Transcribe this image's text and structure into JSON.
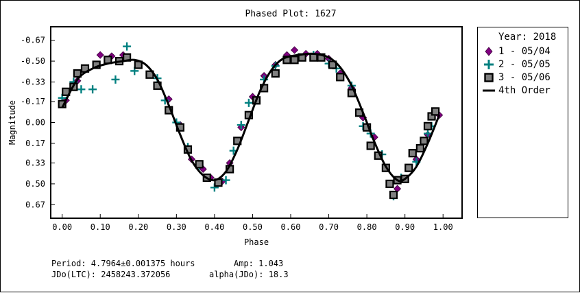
{
  "chart_data": {
    "type": "scatter",
    "title": "Phased Plot: 1627",
    "xlabel": "Phase",
    "ylabel": "Magnitude",
    "xlim": [
      -0.03,
      1.05
    ],
    "ylim": [
      0.78,
      -0.78
    ],
    "x_ticks": [
      "0.00",
      "0.10",
      "0.20",
      "0.30",
      "0.40",
      "0.50",
      "0.60",
      "0.70",
      "0.80",
      "0.90",
      "1.00"
    ],
    "x_tick_values": [
      0.0,
      0.1,
      0.2,
      0.3,
      0.4,
      0.5,
      0.6,
      0.7,
      0.8,
      0.9,
      1.0
    ],
    "y_ticks": [
      "-0.67",
      "-0.50",
      "-0.33",
      "-0.17",
      "0.00",
      "0.17",
      "0.33",
      "0.50",
      "0.67"
    ],
    "y_tick_values": [
      -0.67,
      -0.5,
      -0.33,
      -0.17,
      0.0,
      0.17,
      0.33,
      0.5,
      0.67
    ],
    "legend_title": "Year: 2018",
    "legend_position": "right",
    "grid": false,
    "series": [
      {
        "name": "1 - 05/04",
        "marker": "diamond",
        "color": "#800080",
        "points": [
          [
            0.01,
            -0.18
          ],
          [
            0.04,
            -0.34
          ],
          [
            0.1,
            -0.55
          ],
          [
            0.13,
            -0.54
          ],
          [
            0.16,
            -0.55
          ],
          [
            0.28,
            -0.19
          ],
          [
            0.31,
            0.02
          ],
          [
            0.34,
            0.3
          ],
          [
            0.37,
            0.38
          ],
          [
            0.39,
            0.45
          ],
          [
            0.42,
            0.48
          ],
          [
            0.44,
            0.33
          ],
          [
            0.47,
            0.04
          ],
          [
            0.5,
            -0.21
          ],
          [
            0.53,
            -0.38
          ],
          [
            0.56,
            -0.47
          ],
          [
            0.59,
            -0.55
          ],
          [
            0.61,
            -0.59
          ],
          [
            0.64,
            -0.56
          ],
          [
            0.67,
            -0.56
          ],
          [
            0.7,
            -0.52
          ],
          [
            0.73,
            -0.4
          ],
          [
            0.76,
            -0.28
          ],
          [
            0.79,
            -0.04
          ],
          [
            0.82,
            0.12
          ],
          [
            0.85,
            0.37
          ],
          [
            0.88,
            0.54
          ],
          [
            0.93,
            0.3
          ],
          [
            0.96,
            0.1
          ],
          [
            0.99,
            -0.06
          ]
        ]
      },
      {
        "name": "2 - 05/05",
        "marker": "plus",
        "color": "#008080",
        "points": [
          [
            0.0,
            -0.2
          ],
          [
            0.03,
            -0.33
          ],
          [
            0.05,
            -0.27
          ],
          [
            0.08,
            -0.27
          ],
          [
            0.14,
            -0.35
          ],
          [
            0.17,
            -0.62
          ],
          [
            0.19,
            -0.42
          ],
          [
            0.25,
            -0.36
          ],
          [
            0.27,
            -0.18
          ],
          [
            0.3,
            0.0
          ],
          [
            0.33,
            0.2
          ],
          [
            0.36,
            0.35
          ],
          [
            0.4,
            0.53
          ],
          [
            0.43,
            0.47
          ],
          [
            0.45,
            0.23
          ],
          [
            0.47,
            0.02
          ],
          [
            0.49,
            -0.16
          ],
          [
            0.53,
            -0.35
          ],
          [
            0.56,
            -0.46
          ],
          [
            0.62,
            -0.53
          ],
          [
            0.66,
            -0.55
          ],
          [
            0.7,
            -0.48
          ],
          [
            0.72,
            -0.44
          ],
          [
            0.76,
            -0.3
          ],
          [
            0.79,
            0.03
          ],
          [
            0.81,
            0.09
          ],
          [
            0.84,
            0.26
          ],
          [
            0.87,
            0.6
          ],
          [
            0.89,
            0.45
          ],
          [
            0.93,
            0.32
          ],
          [
            0.96,
            0.09
          ],
          [
            0.97,
            0.03
          ]
        ]
      },
      {
        "name": "3 - 05/06",
        "marker": "square",
        "color": "#808080",
        "points": [
          [
            0.0,
            -0.15
          ],
          [
            0.01,
            -0.25
          ],
          [
            0.03,
            -0.29
          ],
          [
            0.04,
            -0.4
          ],
          [
            0.06,
            -0.44
          ],
          [
            0.09,
            -0.47
          ],
          [
            0.12,
            -0.51
          ],
          [
            0.15,
            -0.5
          ],
          [
            0.17,
            -0.53
          ],
          [
            0.2,
            -0.47
          ],
          [
            0.23,
            -0.39
          ],
          [
            0.25,
            -0.3
          ],
          [
            0.28,
            -0.1
          ],
          [
            0.31,
            0.04
          ],
          [
            0.33,
            0.22
          ],
          [
            0.36,
            0.34
          ],
          [
            0.38,
            0.45
          ],
          [
            0.41,
            0.49
          ],
          [
            0.44,
            0.38
          ],
          [
            0.46,
            0.15
          ],
          [
            0.49,
            -0.06
          ],
          [
            0.51,
            -0.18
          ],
          [
            0.53,
            -0.28
          ],
          [
            0.56,
            -0.4
          ],
          [
            0.59,
            -0.51
          ],
          [
            0.61,
            -0.51
          ],
          [
            0.63,
            -0.53
          ],
          [
            0.66,
            -0.53
          ],
          [
            0.68,
            -0.53
          ],
          [
            0.71,
            -0.47
          ],
          [
            0.73,
            -0.37
          ],
          [
            0.76,
            -0.24
          ],
          [
            0.78,
            -0.08
          ],
          [
            0.8,
            0.04
          ],
          [
            0.81,
            0.19
          ],
          [
            0.83,
            0.27
          ],
          [
            0.85,
            0.37
          ],
          [
            0.86,
            0.5
          ],
          [
            0.88,
            0.47
          ],
          [
            0.87,
            0.59
          ],
          [
            0.9,
            0.46
          ],
          [
            0.91,
            0.37
          ],
          [
            0.92,
            0.25
          ],
          [
            0.94,
            0.21
          ],
          [
            0.95,
            0.15
          ],
          [
            0.96,
            0.03
          ],
          [
            0.97,
            -0.05
          ],
          [
            0.98,
            -0.09
          ]
        ]
      },
      {
        "name": "4th Order",
        "marker": "line",
        "color": "#000000",
        "points": [
          [
            0.0,
            -0.12
          ],
          [
            0.04,
            -0.35
          ],
          [
            0.08,
            -0.44
          ],
          [
            0.12,
            -0.48
          ],
          [
            0.16,
            -0.5
          ],
          [
            0.19,
            -0.51
          ],
          [
            0.22,
            -0.47
          ],
          [
            0.25,
            -0.35
          ],
          [
            0.28,
            -0.14
          ],
          [
            0.31,
            0.1
          ],
          [
            0.34,
            0.31
          ],
          [
            0.37,
            0.43
          ],
          [
            0.4,
            0.47
          ],
          [
            0.43,
            0.4
          ],
          [
            0.46,
            0.22
          ],
          [
            0.49,
            -0.02
          ],
          [
            0.52,
            -0.26
          ],
          [
            0.55,
            -0.43
          ],
          [
            0.58,
            -0.52
          ],
          [
            0.62,
            -0.55
          ],
          [
            0.66,
            -0.56
          ],
          [
            0.7,
            -0.53
          ],
          [
            0.73,
            -0.45
          ],
          [
            0.76,
            -0.3
          ],
          [
            0.79,
            -0.08
          ],
          [
            0.82,
            0.16
          ],
          [
            0.85,
            0.36
          ],
          [
            0.88,
            0.47
          ],
          [
            0.9,
            0.46
          ],
          [
            0.93,
            0.36
          ],
          [
            0.96,
            0.17
          ],
          [
            0.99,
            -0.06
          ]
        ]
      }
    ]
  },
  "footer": {
    "period": "Period: 4.7964±0.001375 hours",
    "amp": "Amp: 1.043",
    "jdo": "JDo(LTC): 2458243.372056",
    "alpha": "alpha(JDo): 18.3"
  }
}
